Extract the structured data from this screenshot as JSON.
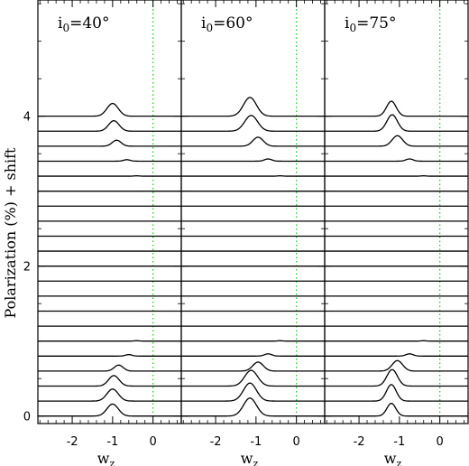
{
  "chart_data": {
    "type": "line",
    "ylabel": "Polarization (%) + shift",
    "xlabel_main": "w",
    "xlabel_sub": "z",
    "x_ticks": [
      "-2",
      "-1",
      "0"
    ],
    "x_tick_values": [
      -2,
      -1,
      0
    ],
    "y_ticks": [
      "0",
      "2",
      "4"
    ],
    "y_tick_values": [
      0,
      2,
      4
    ],
    "xlim": [
      -2.85,
      0.7
    ],
    "ylim": [
      -0.1,
      5.55
    ],
    "curve_spacing": 0.2,
    "curve_count": 21,
    "reference_line": {
      "x": 0,
      "color": "#22cc22",
      "style": "dotted"
    },
    "panels": [
      {
        "label_main": "i",
        "label_sub": "0",
        "label_value": "=40°",
        "peak_center": -1.0,
        "series": [
          {
            "offset": 0.0,
            "peak": 0.16,
            "center": -1.0,
            "width": 0.14
          },
          {
            "offset": 0.2,
            "peak": 0.16,
            "center": -1.0,
            "width": 0.14
          },
          {
            "offset": 0.4,
            "peak": 0.14,
            "center": -0.97,
            "width": 0.13
          },
          {
            "offset": 0.6,
            "peak": 0.08,
            "center": -0.85,
            "width": 0.11
          },
          {
            "offset": 0.8,
            "peak": 0.02,
            "center": -0.6,
            "width": 0.08
          },
          {
            "offset": 1.0,
            "peak": 0.005,
            "center": -0.4,
            "width": 0.06
          },
          {
            "offset": 1.2,
            "peak": 0.0,
            "center": -0.4,
            "width": 0.06
          },
          {
            "offset": 1.4,
            "peak": 0.0,
            "center": -0.4,
            "width": 0.06
          },
          {
            "offset": 1.6,
            "peak": 0.0,
            "center": -0.4,
            "width": 0.06
          },
          {
            "offset": 1.8,
            "peak": 0.0,
            "center": -0.4,
            "width": 0.06
          },
          {
            "offset": 2.0,
            "peak": 0.0,
            "center": -0.4,
            "width": 0.06
          },
          {
            "offset": 2.2,
            "peak": 0.0,
            "center": -0.4,
            "width": 0.06
          },
          {
            "offset": 2.4,
            "peak": 0.0,
            "center": -0.4,
            "width": 0.06
          },
          {
            "offset": 2.6,
            "peak": 0.0,
            "center": -0.4,
            "width": 0.06
          },
          {
            "offset": 2.8,
            "peak": 0.0,
            "center": -0.4,
            "width": 0.06
          },
          {
            "offset": 3.0,
            "peak": 0.0,
            "center": -0.4,
            "width": 0.06
          },
          {
            "offset": 3.2,
            "peak": 0.005,
            "center": -0.4,
            "width": 0.06
          },
          {
            "offset": 3.4,
            "peak": 0.02,
            "center": -0.65,
            "width": 0.08
          },
          {
            "offset": 3.6,
            "peak": 0.08,
            "center": -0.9,
            "width": 0.11
          },
          {
            "offset": 3.8,
            "peak": 0.14,
            "center": -0.97,
            "width": 0.13
          },
          {
            "offset": 4.0,
            "peak": 0.17,
            "center": -1.0,
            "width": 0.14
          }
        ]
      },
      {
        "label_main": "i",
        "label_sub": "0",
        "label_value": "=60°",
        "peak_center": -1.15,
        "series": [
          {
            "offset": 0.0,
            "peak": 0.24,
            "center": -1.15,
            "width": 0.16
          },
          {
            "offset": 0.2,
            "peak": 0.24,
            "center": -1.15,
            "width": 0.16
          },
          {
            "offset": 0.4,
            "peak": 0.21,
            "center": -1.12,
            "width": 0.16
          },
          {
            "offset": 0.6,
            "peak": 0.12,
            "center": -0.95,
            "width": 0.13
          },
          {
            "offset": 0.8,
            "peak": 0.03,
            "center": -0.7,
            "width": 0.09
          },
          {
            "offset": 1.0,
            "peak": 0.005,
            "center": -0.4,
            "width": 0.06
          },
          {
            "offset": 1.2,
            "peak": 0.0,
            "center": -0.4,
            "width": 0.06
          },
          {
            "offset": 1.4,
            "peak": 0.0,
            "center": -0.4,
            "width": 0.06
          },
          {
            "offset": 1.6,
            "peak": 0.0,
            "center": -0.4,
            "width": 0.06
          },
          {
            "offset": 1.8,
            "peak": 0.0,
            "center": -0.4,
            "width": 0.06
          },
          {
            "offset": 2.0,
            "peak": 0.0,
            "center": -0.4,
            "width": 0.06
          },
          {
            "offset": 2.2,
            "peak": 0.0,
            "center": -0.4,
            "width": 0.06
          },
          {
            "offset": 2.4,
            "peak": 0.0,
            "center": -0.4,
            "width": 0.06
          },
          {
            "offset": 2.6,
            "peak": 0.0,
            "center": -0.4,
            "width": 0.06
          },
          {
            "offset": 2.8,
            "peak": 0.0,
            "center": -0.4,
            "width": 0.06
          },
          {
            "offset": 3.0,
            "peak": 0.0,
            "center": -0.4,
            "width": 0.06
          },
          {
            "offset": 3.2,
            "peak": 0.005,
            "center": -0.4,
            "width": 0.06
          },
          {
            "offset": 3.4,
            "peak": 0.03,
            "center": -0.7,
            "width": 0.09
          },
          {
            "offset": 3.6,
            "peak": 0.12,
            "center": -0.95,
            "width": 0.13
          },
          {
            "offset": 3.8,
            "peak": 0.21,
            "center": -1.12,
            "width": 0.16
          },
          {
            "offset": 4.0,
            "peak": 0.25,
            "center": -1.15,
            "width": 0.16
          }
        ]
      },
      {
        "label_main": "i",
        "label_sub": "0",
        "label_value": "=75°",
        "peak_center": -1.2,
        "series": [
          {
            "offset": 0.0,
            "peak": 0.17,
            "center": -1.2,
            "width": 0.11
          },
          {
            "offset": 0.2,
            "peak": 0.22,
            "center": -1.2,
            "width": 0.12
          },
          {
            "offset": 0.4,
            "peak": 0.22,
            "center": -1.18,
            "width": 0.13
          },
          {
            "offset": 0.6,
            "peak": 0.14,
            "center": -1.05,
            "width": 0.13
          },
          {
            "offset": 0.8,
            "peak": 0.03,
            "center": -0.75,
            "width": 0.09
          },
          {
            "offset": 1.0,
            "peak": 0.005,
            "center": -0.4,
            "width": 0.06
          },
          {
            "offset": 1.2,
            "peak": 0.0,
            "center": -0.4,
            "width": 0.06
          },
          {
            "offset": 1.4,
            "peak": 0.0,
            "center": -0.4,
            "width": 0.06
          },
          {
            "offset": 1.6,
            "peak": 0.0,
            "center": -0.4,
            "width": 0.06
          },
          {
            "offset": 1.8,
            "peak": 0.0,
            "center": -0.4,
            "width": 0.06
          },
          {
            "offset": 2.0,
            "peak": 0.0,
            "center": -0.4,
            "width": 0.06
          },
          {
            "offset": 2.2,
            "peak": 0.0,
            "center": -0.4,
            "width": 0.06
          },
          {
            "offset": 2.4,
            "peak": 0.0,
            "center": -0.4,
            "width": 0.06
          },
          {
            "offset": 2.6,
            "peak": 0.0,
            "center": -0.4,
            "width": 0.06
          },
          {
            "offset": 2.8,
            "peak": 0.0,
            "center": -0.4,
            "width": 0.06
          },
          {
            "offset": 3.0,
            "peak": 0.0,
            "center": -0.4,
            "width": 0.06
          },
          {
            "offset": 3.2,
            "peak": 0.005,
            "center": -0.4,
            "width": 0.06
          },
          {
            "offset": 3.4,
            "peak": 0.03,
            "center": -0.75,
            "width": 0.09
          },
          {
            "offset": 3.6,
            "peak": 0.14,
            "center": -1.05,
            "width": 0.13
          },
          {
            "offset": 3.8,
            "peak": 0.22,
            "center": -1.18,
            "width": 0.13
          },
          {
            "offset": 4.0,
            "peak": 0.2,
            "center": -1.2,
            "width": 0.12
          }
        ]
      }
    ]
  }
}
